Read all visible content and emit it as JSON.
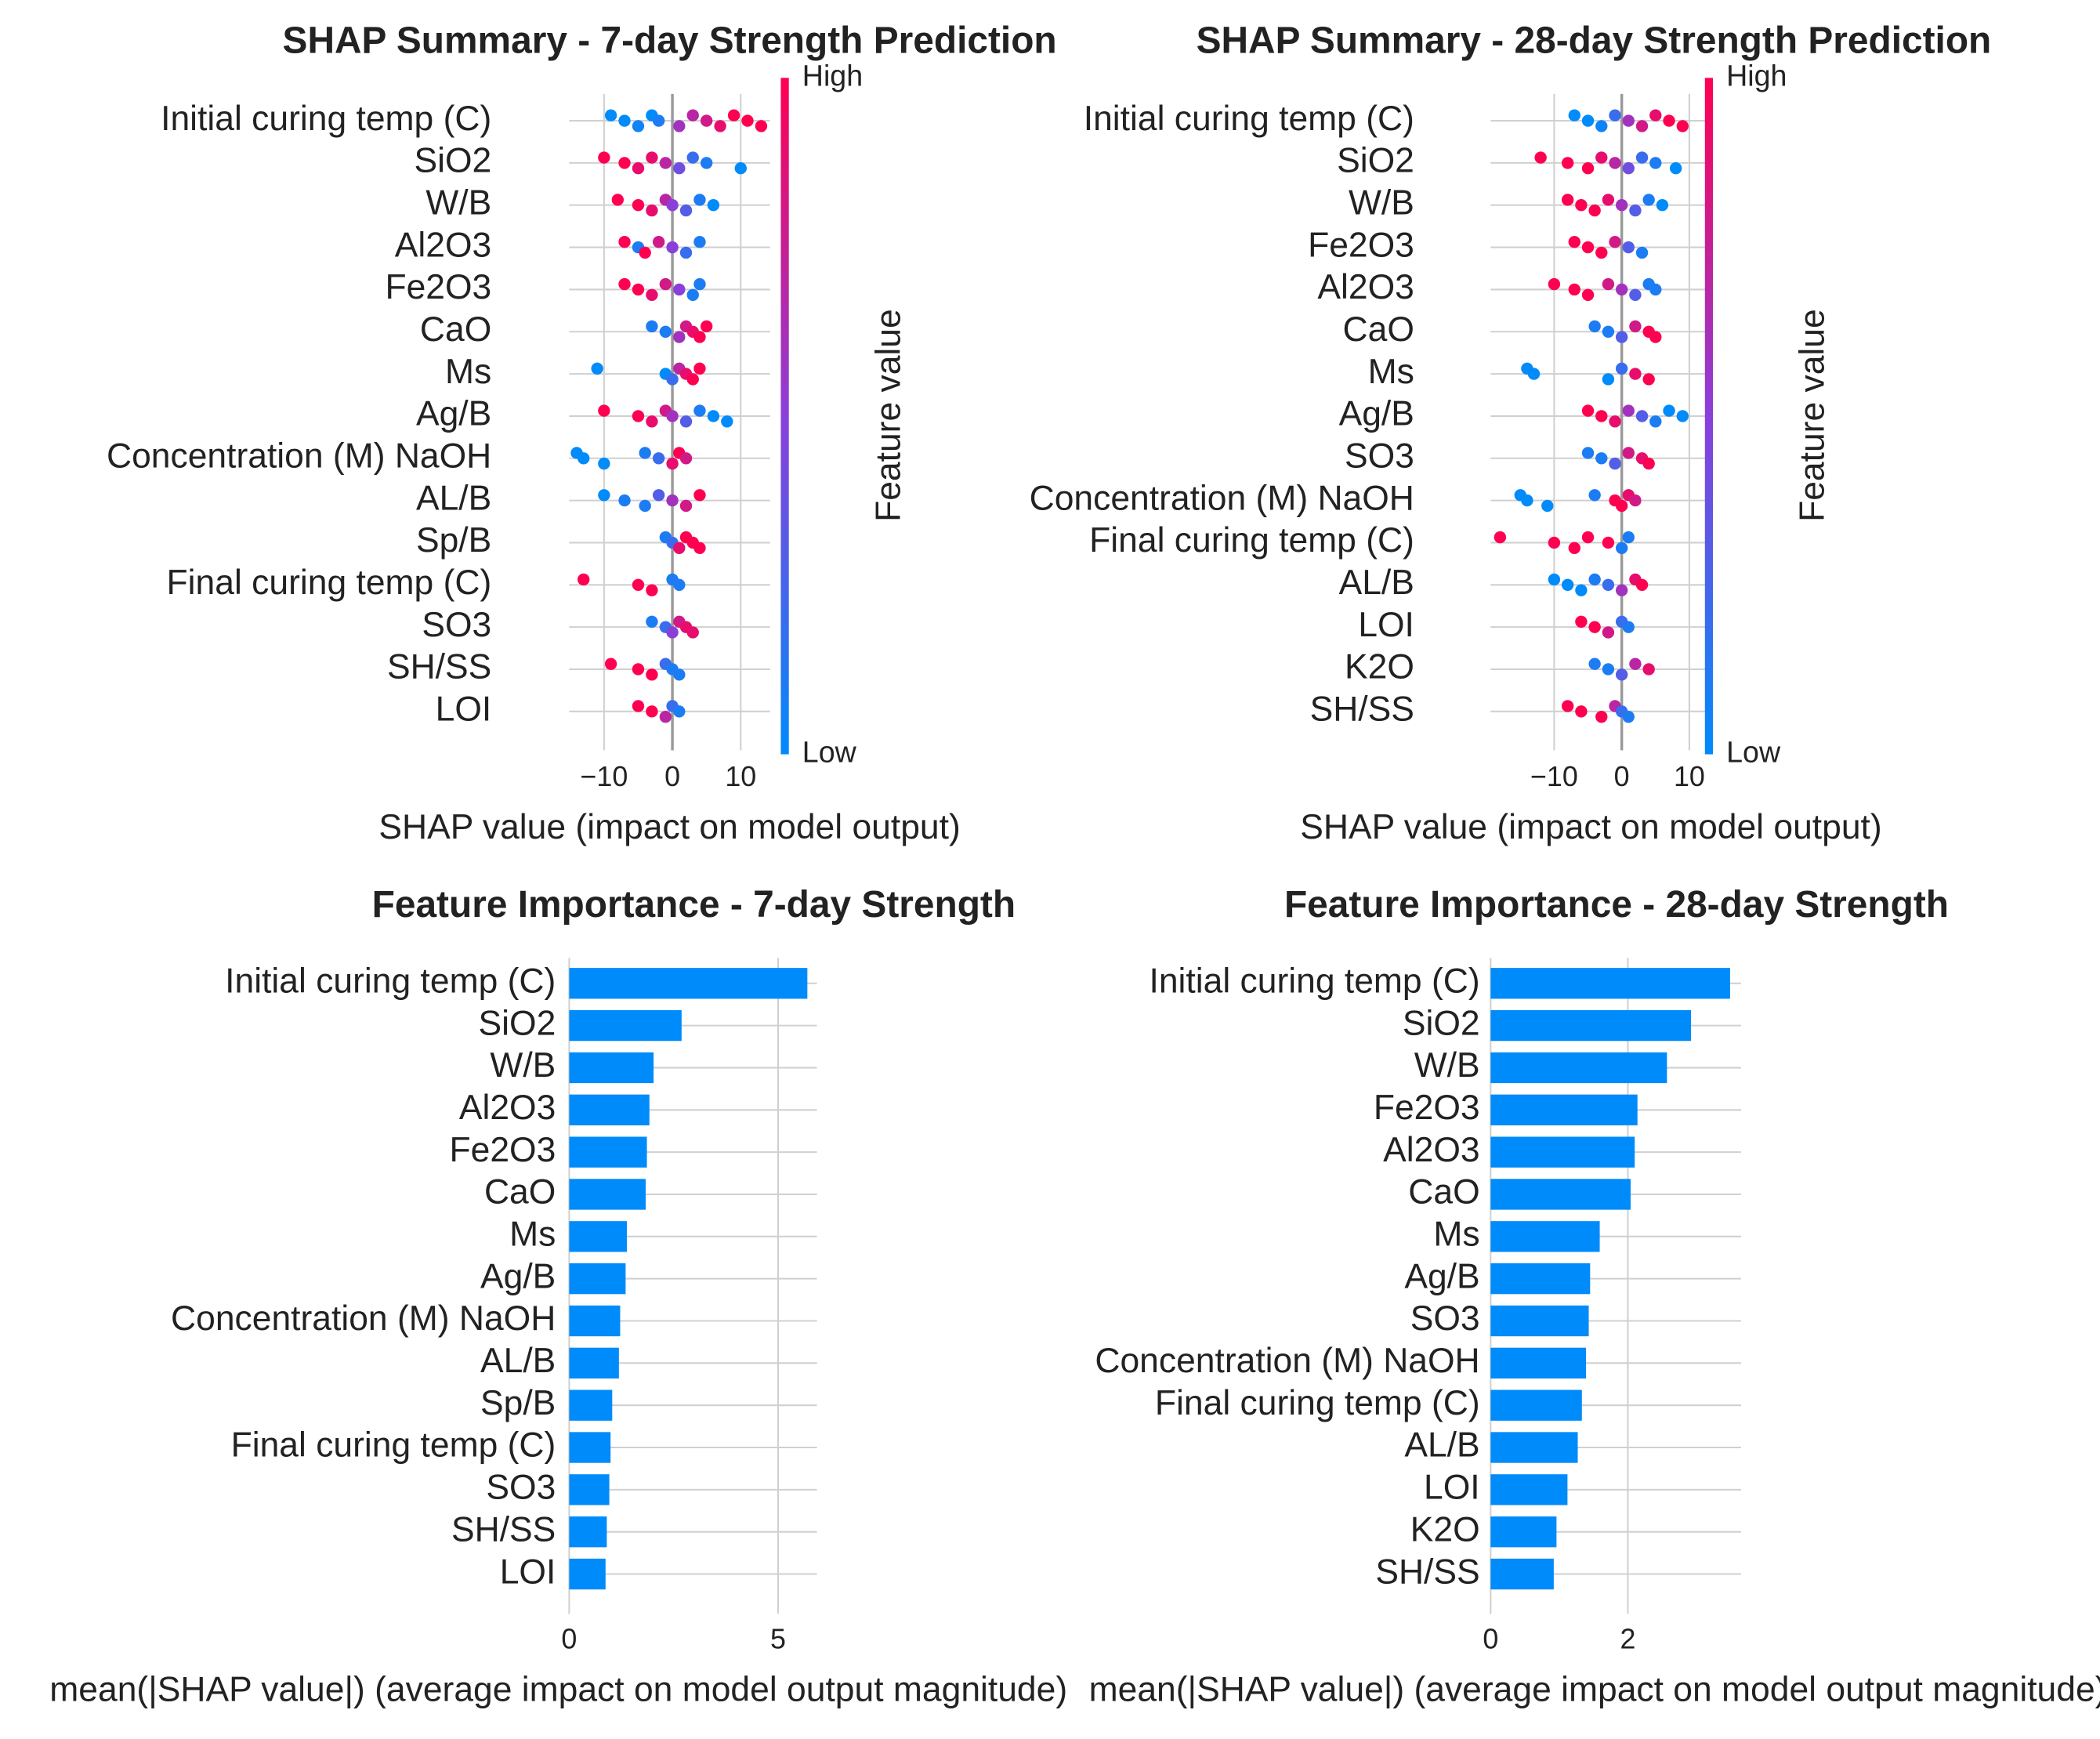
{
  "chart_data": [
    {
      "type": "beeswarm",
      "title": "SHAP Summary - 7-day Strength Prediction",
      "xlabel": "SHAP value (impact on model output)",
      "features": [
        "Initial curing temp (C)",
        "SiO2",
        "W/B",
        "Al2O3",
        "Fe2O3",
        "CaO",
        "Ms",
        "Ag/B",
        "Concentration (M) NaOH",
        "AL/B",
        "Sp/B",
        "Final curing temp (C)",
        "SO3",
        "SH/SS",
        "LOI"
      ],
      "shap_values": [
        [
          -9,
          -7,
          -5,
          -3,
          -2,
          1,
          3,
          5,
          7,
          9,
          11,
          13
        ],
        [
          -10,
          -7,
          -5,
          -3,
          -1,
          1,
          3,
          5,
          10
        ],
        [
          -8,
          -5,
          -3,
          -1,
          0,
          2,
          4,
          6
        ],
        [
          -7,
          -5,
          -4,
          -2,
          0,
          2,
          4
        ],
        [
          -7,
          -5,
          -3,
          -1,
          1,
          3,
          4
        ],
        [
          -3,
          -1,
          1,
          2,
          3,
          4,
          5
        ],
        [
          -11,
          -1,
          0,
          1,
          2,
          3,
          4
        ],
        [
          -10,
          -5,
          -3,
          -1,
          0,
          2,
          4,
          6,
          8
        ],
        [
          -14,
          -13,
          -10,
          -4,
          -2,
          0,
          1,
          2
        ],
        [
          -10,
          -7,
          -4,
          -2,
          0,
          2,
          4
        ],
        [
          -1,
          0,
          1,
          2,
          3,
          4
        ],
        [
          -13,
          -5,
          -3,
          0,
          1
        ],
        [
          -3,
          -1,
          0,
          1,
          2,
          3
        ],
        [
          -9,
          -5,
          -3,
          -1,
          0,
          1
        ],
        [
          -5,
          -3,
          -1,
          0,
          1
        ]
      ],
      "feature_values": [
        [
          0,
          0,
          0.05,
          0,
          0.1,
          0.6,
          0.7,
          0.8,
          0.9,
          1,
          1,
          1
        ],
        [
          1,
          1,
          0.9,
          0.9,
          0.7,
          0.4,
          0.2,
          0.1,
          0
        ],
        [
          1,
          1,
          0.9,
          0.7,
          0.5,
          0.3,
          0.1,
          0
        ],
        [
          1,
          0.1,
          1,
          0.8,
          0.5,
          0.2,
          0.1
        ],
        [
          1,
          1,
          0.9,
          0.8,
          0.5,
          0.1,
          0.1
        ],
        [
          0.1,
          0.1,
          0.6,
          0.8,
          0.9,
          1,
          1
        ],
        [
          0,
          0,
          0.2,
          0.7,
          0.9,
          1,
          1
        ],
        [
          1,
          1,
          0.9,
          0.8,
          0.6,
          0.3,
          0.1,
          0,
          0
        ],
        [
          0,
          0,
          0,
          0.1,
          0.2,
          0.9,
          1,
          0.8
        ],
        [
          0,
          0.1,
          0.1,
          0.3,
          0.6,
          0.8,
          1
        ],
        [
          0.1,
          0.2,
          0.9,
          1,
          1,
          1
        ],
        [
          1,
          1,
          1,
          0.1,
          0.1
        ],
        [
          0.1,
          0.2,
          0.5,
          0.8,
          0.9,
          0.9
        ],
        [
          1,
          1,
          1,
          0.2,
          0.1,
          0.1
        ],
        [
          1,
          1,
          0.7,
          0.2,
          0.1
        ]
      ],
      "xlim": [
        -15.1,
        14.3
      ],
      "xticks": [
        {
          "value": -10,
          "label": "−10"
        },
        0,
        10
      ],
      "grid": true,
      "colorbar": {
        "label": "Feature value",
        "high": "High",
        "low": "Low",
        "colors": [
          "#008bfb",
          "#8b3fd9",
          "#ff0051"
        ]
      }
    },
    {
      "type": "beeswarm",
      "title": "SHAP Summary - 28-day Strength Prediction",
      "xlabel": "SHAP value (impact on model output)",
      "features": [
        "Initial curing temp (C)",
        "SiO2",
        "W/B",
        "Fe2O3",
        "Al2O3",
        "CaO",
        "Ms",
        "Ag/B",
        "SO3",
        "Concentration (M) NaOH",
        "Final curing temp (C)",
        "AL/B",
        "LOI",
        "K2O",
        "SH/SS"
      ],
      "shap_values": [
        [
          -7,
          -5,
          -3,
          -1,
          1,
          3,
          5,
          7,
          9
        ],
        [
          -12,
          -8,
          -5,
          -3,
          -1,
          1,
          3,
          5,
          8
        ],
        [
          -8,
          -6,
          -4,
          -2,
          0,
          2,
          4,
          6
        ],
        [
          -7,
          -5,
          -3,
          -1,
          1,
          3
        ],
        [
          -10,
          -7,
          -5,
          -2,
          0,
          2,
          4,
          5
        ],
        [
          -4,
          -2,
          0,
          2,
          4,
          5
        ],
        [
          -14,
          -13,
          -2,
          0,
          2,
          4
        ],
        [
          -5,
          -3,
          -1,
          1,
          3,
          5,
          7,
          9
        ],
        [
          -5,
          -3,
          -1,
          1,
          3,
          4
        ],
        [
          -15,
          -14,
          -11,
          -4,
          -1,
          0,
          1,
          2
        ],
        [
          -18,
          -10,
          -7,
          -5,
          -2,
          0,
          1
        ],
        [
          -10,
          -8,
          -6,
          -4,
          -2,
          0,
          2,
          3
        ],
        [
          -6,
          -4,
          -2,
          0,
          1
        ],
        [
          -4,
          -2,
          0,
          2,
          4
        ],
        [
          -8,
          -6,
          -3,
          -1,
          0,
          1
        ]
      ],
      "feature_values": [
        [
          0,
          0,
          0.05,
          0.2,
          0.6,
          0.8,
          0.9,
          1,
          1
        ],
        [
          1,
          1,
          1,
          0.9,
          0.7,
          0.4,
          0.2,
          0.1,
          0
        ],
        [
          1,
          1,
          1,
          0.9,
          0.6,
          0.3,
          0.1,
          0
        ],
        [
          1,
          1,
          1,
          0.8,
          0.3,
          0.1
        ],
        [
          1,
          1,
          1,
          0.8,
          0.6,
          0.3,
          0.1,
          0.1
        ],
        [
          0.1,
          0.1,
          0.3,
          0.8,
          1,
          1
        ],
        [
          0,
          0,
          0,
          0.2,
          0.9,
          1
        ],
        [
          1,
          1,
          0.9,
          0.6,
          0.3,
          0.1,
          0,
          0
        ],
        [
          0.1,
          0.1,
          0.3,
          0.8,
          0.9,
          1
        ],
        [
          0,
          0,
          0,
          0.1,
          1,
          1,
          0.9,
          0.8
        ],
        [
          1,
          1,
          1,
          1,
          1,
          0.1,
          0.1
        ],
        [
          0,
          0,
          0,
          0.1,
          0.2,
          0.6,
          0.9,
          1
        ],
        [
          1,
          1,
          0.8,
          0.2,
          0.1
        ],
        [
          0.1,
          0.1,
          0.3,
          0.7,
          0.9
        ],
        [
          1,
          1,
          1,
          0.7,
          0.2,
          0.1
        ]
      ],
      "xlim": [
        -19.4,
        12.7
      ],
      "xticks": [
        {
          "value": -10,
          "label": "−10"
        },
        0,
        10
      ],
      "grid": true,
      "colorbar": {
        "label": "Feature value",
        "high": "High",
        "low": "Low",
        "colors": [
          "#008bfb",
          "#8b3fd9",
          "#ff0051"
        ]
      }
    },
    {
      "type": "barh",
      "title": "Feature Importance - 7-day Strength",
      "xlabel": "mean(|SHAP value|) (average impact on model output magnitude)",
      "categories": [
        "Initial curing temp (C)",
        "SiO2",
        "W/B",
        "Al2O3",
        "Fe2O3",
        "CaO",
        "Ms",
        "Ag/B",
        "Concentration (M) NaOH",
        "AL/B",
        "Sp/B",
        "Final curing temp (C)",
        "SO3",
        "SH/SS",
        "LOI"
      ],
      "values": [
        5.7,
        2.69,
        2.02,
        1.92,
        1.86,
        1.83,
        1.38,
        1.35,
        1.22,
        1.19,
        1.03,
        0.99,
        0.96,
        0.9,
        0.87
      ],
      "color": "#008bfb",
      "xlim": [
        0,
        5.93
      ],
      "xticks": [
        0,
        5
      ],
      "grid": true
    },
    {
      "type": "barh",
      "title": "Feature Importance - 28-day Strength",
      "xlabel": "mean(|SHAP value|) (average impact on model output magnitude)",
      "categories": [
        "Initial curing temp (C)",
        "SiO2",
        "W/B",
        "Fe2O3",
        "Al2O3",
        "CaO",
        "Ms",
        "Ag/B",
        "SO3",
        "Concentration (M) NaOH",
        "Final curing temp (C)",
        "AL/B",
        "LOI",
        "K2O",
        "SH/SS"
      ],
      "values": [
        3.49,
        2.92,
        2.57,
        2.14,
        2.1,
        2.04,
        1.59,
        1.45,
        1.43,
        1.39,
        1.33,
        1.27,
        1.12,
        0.96,
        0.92
      ],
      "color": "#008bfb",
      "xlim": [
        0,
        3.65
      ],
      "xticks": [
        0,
        2
      ],
      "grid": true
    }
  ]
}
